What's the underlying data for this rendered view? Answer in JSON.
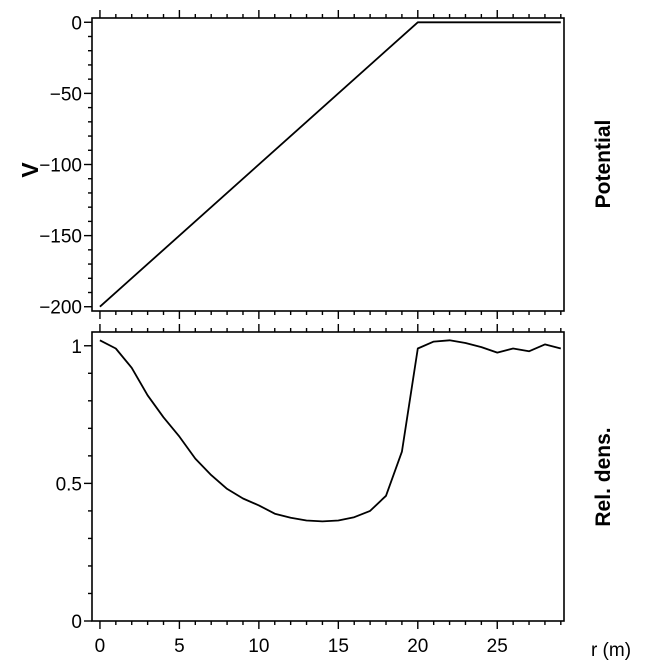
{
  "chart_data": [
    {
      "type": "line",
      "panel": "top",
      "title": "",
      "side_label": "Potential",
      "xlabel": "",
      "ylabel": "V",
      "xlim": [
        -0.5,
        29.2
      ],
      "ylim": [
        -203,
        3
      ],
      "x_ticks": [
        0,
        5,
        10,
        15,
        20,
        25
      ],
      "y_ticks": [
        0,
        -50,
        -100,
        -150,
        -200
      ],
      "y_tick_labels": [
        "0",
        "−50",
        "−100",
        "−150",
        "−200"
      ],
      "grid": false,
      "series": [
        {
          "x": [
            0,
            20,
            29
          ],
          "values": [
            -200,
            0,
            0
          ]
        }
      ]
    },
    {
      "type": "line",
      "panel": "bottom",
      "title": "",
      "side_label": "Rel. dens.",
      "xlabel": "r (m)",
      "ylabel": "",
      "xlim": [
        -0.5,
        29.2
      ],
      "ylim": [
        0,
        1.05
      ],
      "x_ticks": [
        0,
        5,
        10,
        15,
        20,
        25
      ],
      "x_tick_labels": [
        "0",
        "5",
        "10",
        "15",
        "20",
        "25"
      ],
      "y_ticks": [
        0,
        0.5,
        1
      ],
      "y_tick_labels": [
        "0",
        "0.5",
        "1"
      ],
      "grid": false,
      "series": [
        {
          "x": [
            0,
            1,
            2,
            3,
            4,
            5,
            6,
            7,
            8,
            9,
            10,
            11,
            12,
            13,
            14,
            15,
            16,
            17,
            18,
            19,
            20,
            21,
            22,
            23,
            24,
            25,
            26,
            27,
            28,
            29
          ],
          "values": [
            1.02,
            0.99,
            0.92,
            0.82,
            0.74,
            0.67,
            0.59,
            0.53,
            0.48,
            0.445,
            0.42,
            0.39,
            0.375,
            0.365,
            0.362,
            0.365,
            0.377,
            0.4,
            0.455,
            0.615,
            0.99,
            1.015,
            1.02,
            1.01,
            0.995,
            0.975,
            0.99,
            0.98,
            1.005,
            0.99
          ]
        }
      ]
    }
  ]
}
